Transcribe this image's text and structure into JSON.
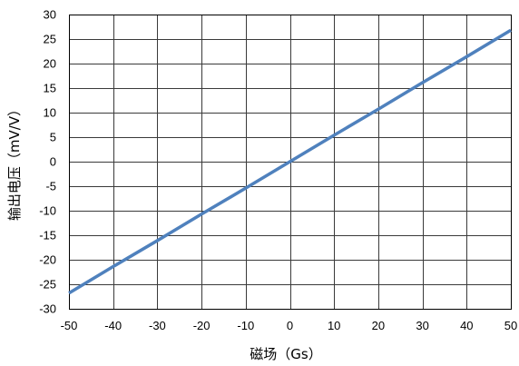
{
  "chart_data": {
    "type": "line",
    "xlabel": "磁场（Gs）",
    "ylabel": "输出电压（mV/V）",
    "xlim": [
      -50,
      50
    ],
    "ylim": [
      -30,
      30
    ],
    "x_ticks": [
      -50,
      -40,
      -30,
      -20,
      -10,
      0,
      10,
      20,
      30,
      40,
      50
    ],
    "y_ticks": [
      30,
      25,
      20,
      15,
      10,
      5,
      0,
      -5,
      -10,
      -15,
      -20,
      -25,
      -30
    ],
    "grid": true,
    "legend": false,
    "series": [
      {
        "color": "#4f81bd",
        "x": [
          -50,
          -40,
          -30,
          -20,
          -10,
          0,
          10,
          20,
          30,
          40,
          50
        ],
        "y": [
          -26.8,
          -21.4,
          -16.1,
          -10.7,
          -5.4,
          0,
          5.4,
          10.7,
          16.1,
          21.4,
          26.8
        ]
      }
    ]
  }
}
